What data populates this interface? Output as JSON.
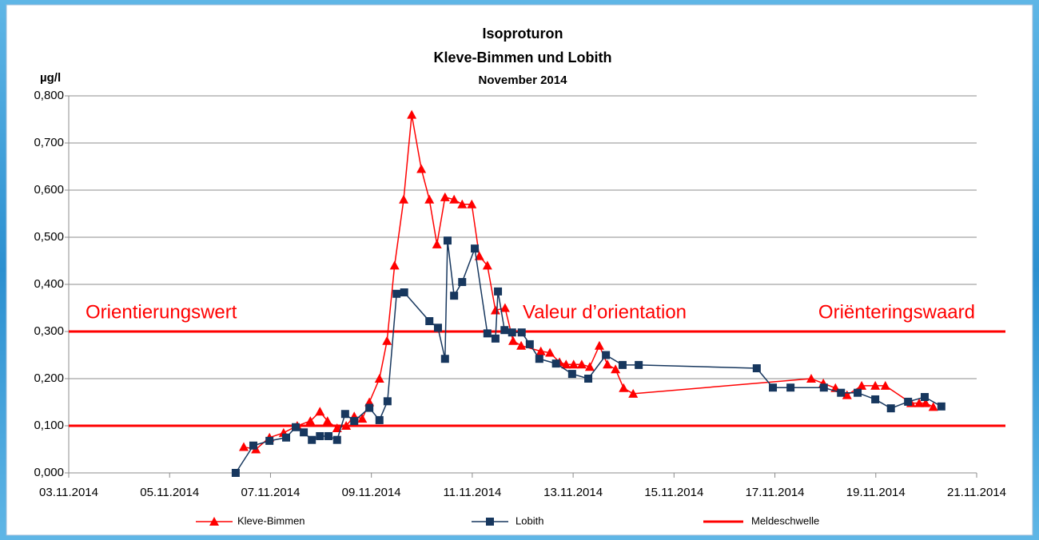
{
  "chart_data": {
    "type": "line",
    "title": "Isoproturon",
    "subtitle": "Kleve-Bimmen und Lobith",
    "period": "November 2014",
    "y_label": "µg/l",
    "xlim": [
      3,
      21
    ],
    "xticks": [
      {
        "value": 3,
        "label": "03.11.2014"
      },
      {
        "value": 5,
        "label": "05.11.2014"
      },
      {
        "value": 7,
        "label": "07.11.2014"
      },
      {
        "value": 9,
        "label": "09.11.2014"
      },
      {
        "value": 11,
        "label": "11.11.2014"
      },
      {
        "value": 13,
        "label": "13.11.2014"
      },
      {
        "value": 15,
        "label": "15.11.2014"
      },
      {
        "value": 17,
        "label": "17.11.2014"
      },
      {
        "value": 19,
        "label": "19.11.2014"
      },
      {
        "value": 21,
        "label": "21.11.2014"
      }
    ],
    "ylim": [
      0,
      0.8
    ],
    "yticks": [
      {
        "value": 0,
        "label": "0,000"
      },
      {
        "value": 0.1,
        "label": "0,100"
      },
      {
        "value": 0.2,
        "label": "0,200"
      },
      {
        "value": 0.3,
        "label": "0,300"
      },
      {
        "value": 0.4,
        "label": "0,400"
      },
      {
        "value": 0.5,
        "label": "0,500"
      },
      {
        "value": 0.6,
        "label": "0,600"
      },
      {
        "value": 0.7,
        "label": "0,700"
      },
      {
        "value": 0.8,
        "label": "0,800"
      }
    ],
    "grid": true,
    "series": [
      {
        "name": "Kleve-Bimmen",
        "color": "#ff0000",
        "marker": "triangle",
        "x": [
          6.47,
          6.71,
          6.98,
          7.26,
          7.53,
          7.79,
          7.98,
          8.13,
          8.32,
          8.5,
          8.66,
          8.82,
          8.96,
          9.16,
          9.31,
          9.46,
          9.64,
          9.8,
          9.99,
          10.15,
          10.3,
          10.46,
          10.64,
          10.8,
          10.99,
          11.14,
          11.3,
          11.46,
          11.65,
          11.81,
          11.97,
          12.36,
          12.54,
          12.73,
          12.86,
          13.01,
          13.17,
          13.33,
          13.52,
          13.68,
          13.84,
          14.0,
          14.19,
          17.72,
          17.96,
          18.2,
          18.43,
          18.72,
          18.99,
          19.19,
          19.7,
          19.86,
          19.99,
          20.14
        ],
        "values": [
          0.055,
          0.05,
          0.075,
          0.085,
          0.1,
          0.11,
          0.13,
          0.11,
          0.095,
          0.1,
          0.12,
          0.115,
          0.15,
          0.2,
          0.28,
          0.44,
          0.58,
          0.76,
          0.645,
          0.58,
          0.485,
          0.585,
          0.58,
          0.57,
          0.57,
          0.46,
          0.44,
          0.345,
          0.35,
          0.28,
          0.27,
          0.258,
          0.255,
          0.235,
          0.23,
          0.23,
          0.23,
          0.225,
          0.27,
          0.23,
          0.22,
          0.18,
          0.168,
          0.2,
          0.19,
          0.18,
          0.165,
          0.185,
          0.185,
          0.185,
          0.148,
          0.148,
          0.148,
          0.14
        ]
      },
      {
        "name": "Lobith",
        "color": "#17375e",
        "marker": "square",
        "x": [
          6.31,
          6.66,
          6.98,
          7.31,
          7.5,
          7.66,
          7.82,
          7.98,
          8.15,
          8.32,
          8.48,
          8.66,
          8.96,
          9.16,
          9.32,
          9.5,
          9.65,
          10.15,
          10.32,
          10.46,
          10.51,
          10.64,
          10.8,
          11.05,
          11.3,
          11.46,
          11.51,
          11.64,
          11.79,
          11.98,
          12.14,
          12.33,
          12.66,
          12.98,
          13.3,
          13.65,
          13.98,
          14.3,
          16.64,
          16.96,
          17.31,
          17.97,
          18.31,
          18.64,
          18.99,
          19.3,
          19.64,
          19.97,
          20.3
        ],
        "values": [
          0.0,
          0.058,
          0.068,
          0.075,
          0.097,
          0.086,
          0.07,
          0.078,
          0.078,
          0.07,
          0.125,
          0.11,
          0.138,
          0.112,
          0.152,
          0.38,
          0.383,
          0.322,
          0.308,
          0.242,
          0.493,
          0.376,
          0.405,
          0.476,
          0.296,
          0.285,
          0.385,
          0.303,
          0.298,
          0.298,
          0.273,
          0.242,
          0.232,
          0.21,
          0.2,
          0.25,
          0.229,
          0.229,
          0.222,
          0.181,
          0.181,
          0.181,
          0.17,
          0.17,
          0.156,
          0.137,
          0.151,
          0.161,
          0.141
        ]
      }
    ],
    "hlines": [
      {
        "name": "Meldeschwelle",
        "value": 0.1,
        "color": "#ff0000"
      }
    ],
    "orientation_line": {
      "value": 0.3,
      "color": "#ff0000",
      "labels": [
        "Orientierungswert",
        "Valeur d’orientation",
        "Oriënteringswaard"
      ]
    }
  }
}
